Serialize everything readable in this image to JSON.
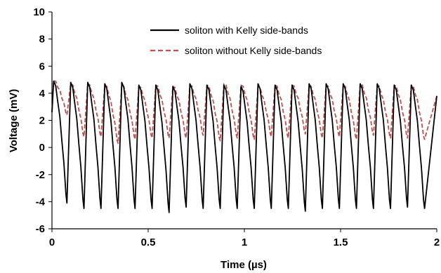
{
  "chart_data": {
    "type": "line",
    "title": "",
    "xlabel": "Time (µs)",
    "ylabel": "Voltage (mV)",
    "xlim": [
      0,
      2
    ],
    "ylim": [
      -6,
      10
    ],
    "x_ticks": [
      {
        "value": 0,
        "label": "0"
      },
      {
        "value": 0.5,
        "label": "0.5"
      },
      {
        "value": 1,
        "label": "1"
      },
      {
        "value": 1.5,
        "label": "1.5"
      },
      {
        "value": 2,
        "label": "2"
      }
    ],
    "y_ticks": [
      {
        "value": -6,
        "label": "-6"
      },
      {
        "value": -4,
        "label": "-4"
      },
      {
        "value": -2,
        "label": "-2"
      },
      {
        "value": 0,
        "label": "0"
      },
      {
        "value": 2,
        "label": "2"
      },
      {
        "value": 4,
        "label": "4"
      },
      {
        "value": 6,
        "label": "6"
      },
      {
        "value": 8,
        "label": "8"
      },
      {
        "value": 10,
        "label": "10"
      }
    ],
    "grid": false,
    "legend_position": "top-right",
    "series": [
      {
        "name": "soliton with Kelly side-bands",
        "color": "#000000",
        "style": "solid",
        "pulse_period_us": 0.0885,
        "peaks_mV": [
          4.9,
          4.8,
          4.8,
          4.7,
          4.8,
          4.6,
          4.6,
          4.5,
          4.7,
          4.6,
          4.6,
          4.5,
          4.7,
          4.6,
          4.6,
          4.7,
          4.7,
          4.7,
          4.7,
          4.7,
          4.6,
          4.6
        ],
        "troughs_mV": [
          -4.1,
          -4.5,
          -4.5,
          -4.5,
          -4.5,
          -4.5,
          -4.8,
          -4.4,
          -4.5,
          -4.5,
          -4.5,
          -4.5,
          -4.5,
          -4.5,
          -4.7,
          -4.5,
          -4.5,
          -4.5,
          -4.5,
          -4.5,
          -4.4,
          -4.5
        ]
      },
      {
        "name": "soliton without Kelly side-bands",
        "color": "#c0504d",
        "style": "dashed",
        "pulse_period_us": 0.0885,
        "peaks_mV": [
          4.9,
          4.7,
          4.7,
          4.6,
          4.6,
          4.5,
          4.6,
          4.5,
          4.6,
          4.6,
          4.7,
          4.6,
          4.5,
          4.6,
          4.6,
          4.6,
          4.6,
          4.6,
          4.7,
          4.6,
          4.6,
          4.6
        ],
        "troughs_mV": [
          2.4,
          0.8,
          0.8,
          0.3,
          0.6,
          0.7,
          0.7,
          0.7,
          0.9,
          0.5,
          0.7,
          0.6,
          0.8,
          0.7,
          1.0,
          0.7,
          0.8,
          0.6,
          0.9,
          0.7,
          0.7,
          0.6
        ]
      }
    ]
  }
}
